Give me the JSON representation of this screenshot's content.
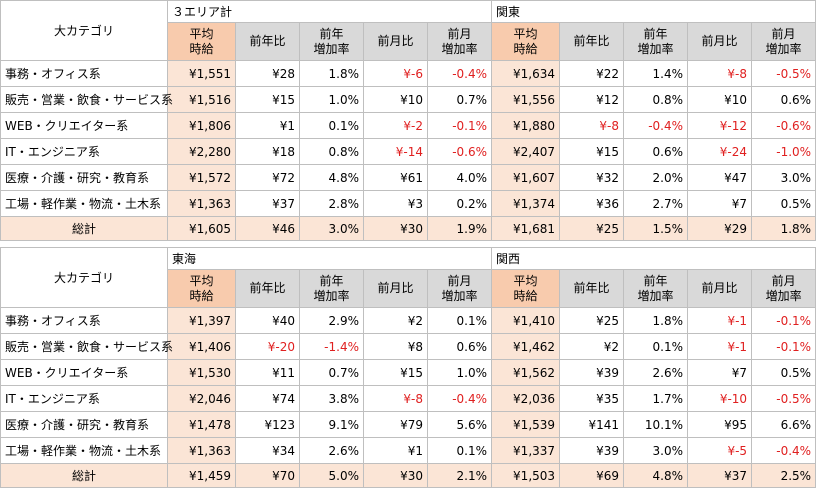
{
  "cat_header": "大カテゴリ",
  "sub_headers": {
    "avg": "平均\n時給",
    "yoy": "前年比",
    "yoy_rate": "前年\n増加率",
    "mom": "前月比",
    "mom_rate": "前月\n増加率"
  },
  "tables": [
    {
      "region_a": "３エリア計",
      "region_b": "関東",
      "rows": [
        {
          "cat": "事務・オフィス系",
          "a": [
            "¥1,551",
            "¥28",
            "1.8%",
            "¥-6",
            "-0.4%"
          ],
          "b": [
            "¥1,634",
            "¥22",
            "1.4%",
            "¥-8",
            "-0.5%"
          ]
        },
        {
          "cat": "販売・営業・飲食・サービス系",
          "a": [
            "¥1,516",
            "¥15",
            "1.0%",
            "¥10",
            "0.7%"
          ],
          "b": [
            "¥1,556",
            "¥12",
            "0.8%",
            "¥10",
            "0.6%"
          ]
        },
        {
          "cat": "WEB・クリエイター系",
          "a": [
            "¥1,806",
            "¥1",
            "0.1%",
            "¥-2",
            "-0.1%"
          ],
          "b": [
            "¥1,880",
            "¥-8",
            "-0.4%",
            "¥-12",
            "-0.6%"
          ]
        },
        {
          "cat": "IT・エンジニア系",
          "a": [
            "¥2,280",
            "¥18",
            "0.8%",
            "¥-14",
            "-0.6%"
          ],
          "b": [
            "¥2,407",
            "¥15",
            "0.6%",
            "¥-24",
            "-1.0%"
          ]
        },
        {
          "cat": "医療・介護・研究・教育系",
          "a": [
            "¥1,572",
            "¥72",
            "4.8%",
            "¥61",
            "4.0%"
          ],
          "b": [
            "¥1,607",
            "¥32",
            "2.0%",
            "¥47",
            "3.0%"
          ]
        },
        {
          "cat": "工場・軽作業・物流・土木系",
          "a": [
            "¥1,363",
            "¥37",
            "2.8%",
            "¥3",
            "0.2%"
          ],
          "b": [
            "¥1,374",
            "¥36",
            "2.7%",
            "¥7",
            "0.5%"
          ]
        }
      ],
      "total": {
        "cat": "総計",
        "a": [
          "¥1,605",
          "¥46",
          "3.0%",
          "¥30",
          "1.9%"
        ],
        "b": [
          "¥1,681",
          "¥25",
          "1.5%",
          "¥29",
          "1.8%"
        ]
      }
    },
    {
      "region_a": "東海",
      "region_b": "関西",
      "rows": [
        {
          "cat": "事務・オフィス系",
          "a": [
            "¥1,397",
            "¥40",
            "2.9%",
            "¥2",
            "0.1%"
          ],
          "b": [
            "¥1,410",
            "¥25",
            "1.8%",
            "¥-1",
            "-0.1%"
          ]
        },
        {
          "cat": "販売・営業・飲食・サービス系",
          "a": [
            "¥1,406",
            "¥-20",
            "-1.4%",
            "¥8",
            "0.6%"
          ],
          "b": [
            "¥1,462",
            "¥2",
            "0.1%",
            "¥-1",
            "-0.1%"
          ]
        },
        {
          "cat": "WEB・クリエイター系",
          "a": [
            "¥1,530",
            "¥11",
            "0.7%",
            "¥15",
            "1.0%"
          ],
          "b": [
            "¥1,562",
            "¥39",
            "2.6%",
            "¥7",
            "0.5%"
          ]
        },
        {
          "cat": "IT・エンジニア系",
          "a": [
            "¥2,046",
            "¥74",
            "3.8%",
            "¥-8",
            "-0.4%"
          ],
          "b": [
            "¥2,036",
            "¥35",
            "1.7%",
            "¥-10",
            "-0.5%"
          ]
        },
        {
          "cat": "医療・介護・研究・教育系",
          "a": [
            "¥1,478",
            "¥123",
            "9.1%",
            "¥79",
            "5.6%"
          ],
          "b": [
            "¥1,539",
            "¥141",
            "10.1%",
            "¥95",
            "6.6%"
          ]
        },
        {
          "cat": "工場・軽作業・物流・土木系",
          "a": [
            "¥1,363",
            "¥34",
            "2.6%",
            "¥1",
            "0.1%"
          ],
          "b": [
            "¥1,337",
            "¥39",
            "3.0%",
            "¥-5",
            "-0.4%"
          ]
        }
      ],
      "total": {
        "cat": "総計",
        "a": [
          "¥1,459",
          "¥70",
          "5.0%",
          "¥30",
          "2.1%"
        ],
        "b": [
          "¥1,503",
          "¥69",
          "4.8%",
          "¥37",
          "2.5%"
        ]
      }
    }
  ],
  "colors": {
    "header_gray": "#d9d9d9",
    "header_orange": "#f8cbad",
    "cell_orange": "#fbe5d6",
    "negative": "#e02020",
    "border": "#bfbfbf"
  }
}
